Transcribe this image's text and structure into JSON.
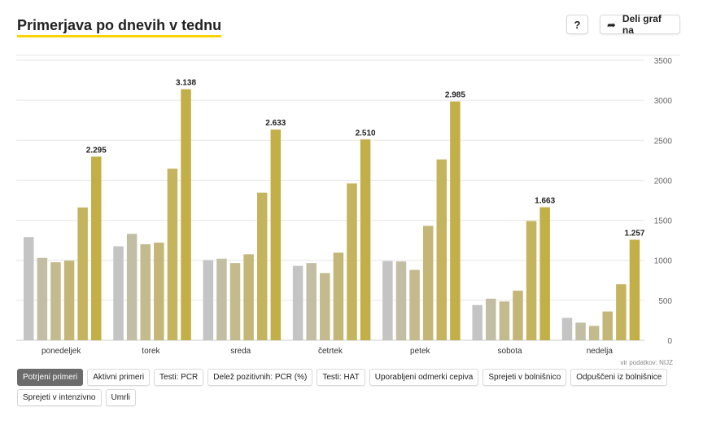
{
  "header": {
    "title": "Primerjava po dnevih v tednu",
    "help_label": "?",
    "share_label": "Deli graf na",
    "share_icon": "share-arrow-icon"
  },
  "source_label": "vir podatkov: NIJZ",
  "metric_buttons": [
    {
      "label": "Potrjeni primeri",
      "active": true
    },
    {
      "label": "Aktivni primeri",
      "active": false
    },
    {
      "label": "Testi: PCR",
      "active": false
    },
    {
      "label": "Delež pozitivnih: PCR (%)",
      "active": false
    },
    {
      "label": "Testi: HAT",
      "active": false
    },
    {
      "label": "Uporabljeni odmerki cepiva",
      "active": false
    },
    {
      "label": "Sprejeti v bolnišnico",
      "active": false
    },
    {
      "label": "Odpuščeni iz bolnišnice",
      "active": false
    },
    {
      "label": "Sprejeti v intenzivno",
      "active": false
    },
    {
      "label": "Umrli",
      "active": false
    }
  ],
  "chart_data": {
    "type": "bar",
    "title": "Primerjava po dnevih v tednu",
    "categories": [
      "ponedeljek",
      "torek",
      "sreda",
      "četrtek",
      "petek",
      "sobota",
      "nedelja"
    ],
    "ylim": [
      0,
      3500
    ],
    "yticks": [
      0,
      500,
      1000,
      1500,
      2000,
      2500,
      3000,
      3500
    ],
    "y_axis_position": "right",
    "grid": true,
    "bar_colors": [
      "#c4c4c4",
      "#c2bea4",
      "#c3ba8d",
      "#c4b677",
      "#c4b45e",
      "#c3af48",
      "#bfaa22"
    ],
    "values": [
      [
        1290,
        1030,
        975,
        995,
        1660,
        2295
      ],
      [
        1175,
        1330,
        1200,
        1220,
        2145,
        3138
      ],
      [
        1000,
        1020,
        965,
        1075,
        1845,
        2633
      ],
      [
        930,
        965,
        840,
        1095,
        1960,
        2510
      ],
      [
        990,
        985,
        880,
        1430,
        2260,
        2985
      ],
      [
        440,
        520,
        485,
        620,
        1490,
        1663
      ],
      [
        280,
        220,
        180,
        360,
        700,
        1257
      ]
    ],
    "value_labels": [
      "2.295",
      "3.138",
      "2.633",
      "2.510",
      "2.985",
      "1.663",
      "1.257"
    ]
  }
}
